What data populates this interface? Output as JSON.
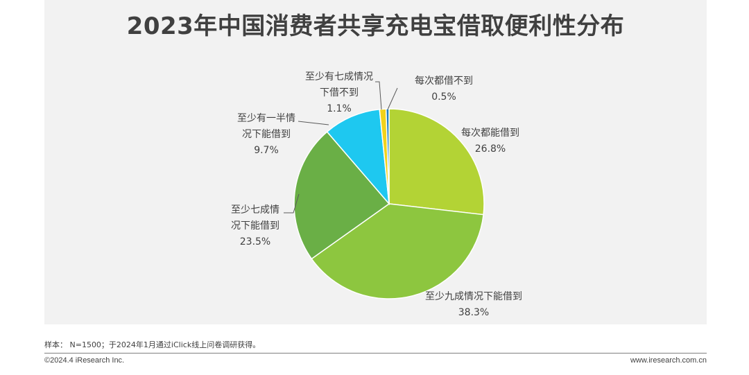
{
  "chart_data": {
    "type": "pie",
    "title": "2023年中国消费者共享充电宝借取便利性分布",
    "slices": [
      {
        "name": "每次都能借到",
        "value": 26.8,
        "value_label": "26.8%",
        "color": "#b3d335"
      },
      {
        "name": "至少九成情况下能借到",
        "value": 38.3,
        "value_label": "38.3%",
        "color": "#8dc63f"
      },
      {
        "name": "至少七成情况下能借到",
        "value": 23.5,
        "value_label": "23.5%",
        "color": "#6aaf46"
      },
      {
        "name": "至少有一半情况下能借到",
        "value": 9.7,
        "value_label": "9.7%",
        "color": "#1ec8f0"
      },
      {
        "name": "至少有七成情况下借不到",
        "value": 1.1,
        "value_label": "1.1%",
        "color": "#f2d21b"
      },
      {
        "name": "每次都借不到",
        "value": 0.5,
        "value_label": "0.5%",
        "color": "#1f7fc1"
      }
    ],
    "label_lines": [
      [
        "每次都能借到",
        "26.8%"
      ],
      [
        "至少九成情况下能借到",
        "38.3%"
      ],
      [
        "至少七成情",
        "况下能借到",
        "23.5%"
      ],
      [
        "至少有一半情",
        "况下能借到",
        "9.7%"
      ],
      [
        "至少有七成情况",
        "下借不到",
        "1.1%"
      ],
      [
        "每次都借不到",
        "0.5%"
      ]
    ]
  },
  "footer": {
    "note": "样本： N=1500；于2024年1月通过iClick线上问卷调研获得。",
    "copyright": "©2024.4 iResearch Inc.",
    "website": "www.iresearch.com.cn"
  }
}
